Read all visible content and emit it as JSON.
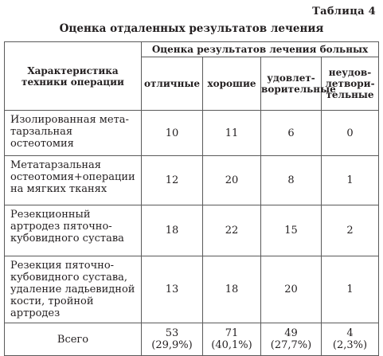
{
  "table_label": "Таблица 4",
  "title": "Оценка отдаленных результатов лечения",
  "header": {
    "characteristic": "Характеристика техники операции",
    "group": "Оценка результатов лечения больных",
    "columns": [
      "отличные",
      "хорошие",
      "удовлет-ворительные",
      "неудов-летвори-тельные"
    ]
  },
  "rows": [
    {
      "label": "Изолированная мета-тарзальная остеотомия",
      "values": [
        "10",
        "11",
        "6",
        "0"
      ]
    },
    {
      "label": "Метатарзальная остеотомия+операции на мягких тканях",
      "values": [
        "12",
        "20",
        "8",
        "1"
      ]
    },
    {
      "label": "Резекционный артродез пяточно-кубовидного сустава",
      "values": [
        "18",
        "22",
        "15",
        "2"
      ]
    },
    {
      "label": "Резекция пяточно-кубовидного сустава, удаление ладьевидной кости, тройной артродез",
      "values": [
        "13",
        "18",
        "20",
        "1"
      ]
    }
  ],
  "total": {
    "label": "Всего",
    "values": [
      {
        "count": "53",
        "percent": "(29,9%)"
      },
      {
        "count": "71",
        "percent": "(40,1%)"
      },
      {
        "count": "49",
        "percent": "(27,7%)"
      },
      {
        "count": "4",
        "percent": "(2,3%)"
      }
    ]
  }
}
